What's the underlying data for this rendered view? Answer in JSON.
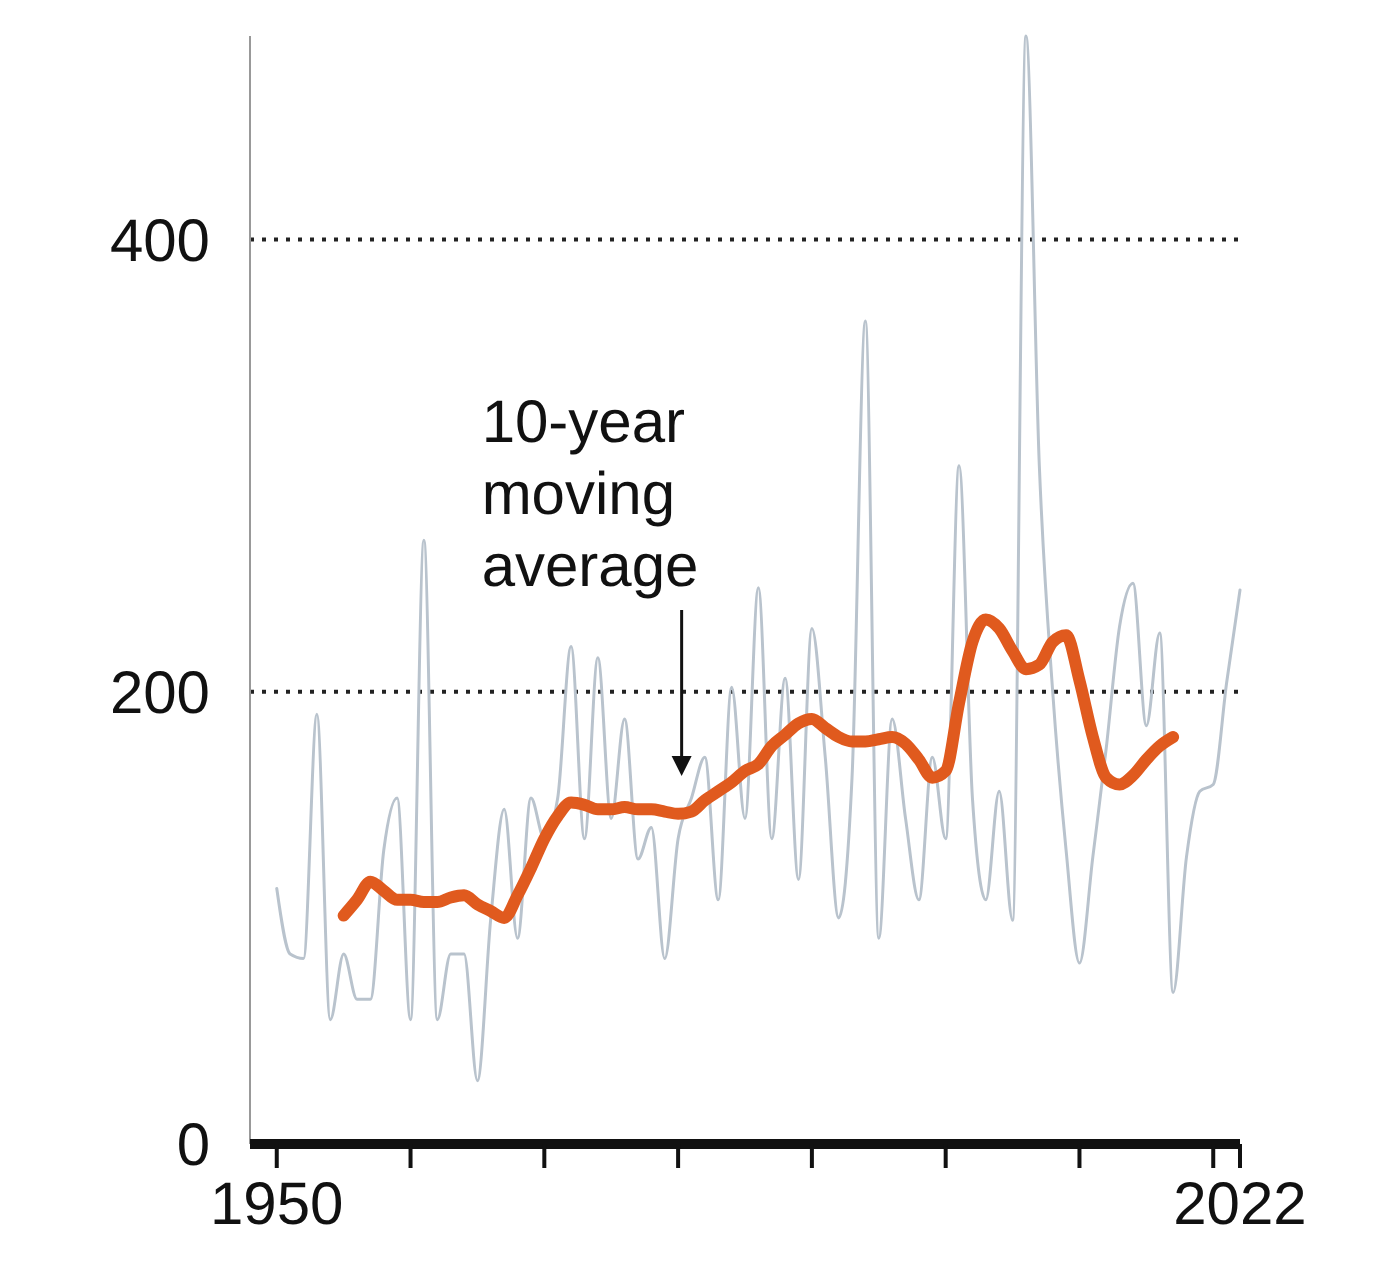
{
  "chart_data": {
    "type": "line",
    "x": [
      1950,
      1951,
      1952,
      1953,
      1954,
      1955,
      1956,
      1957,
      1958,
      1959,
      1960,
      1961,
      1962,
      1963,
      1964,
      1965,
      1966,
      1967,
      1968,
      1969,
      1970,
      1971,
      1972,
      1973,
      1974,
      1975,
      1976,
      1977,
      1978,
      1979,
      1980,
      1981,
      1982,
      1983,
      1984,
      1985,
      1986,
      1987,
      1988,
      1989,
      1990,
      1991,
      1992,
      1993,
      1994,
      1995,
      1996,
      1997,
      1998,
      1999,
      2000,
      2001,
      2002,
      2003,
      2004,
      2005,
      2006,
      2007,
      2008,
      2009,
      2010,
      2011,
      2012,
      2013,
      2014,
      2015,
      2016,
      2017,
      2018,
      2019,
      2020,
      2021,
      2022
    ],
    "series": [
      {
        "color": "#b9c3cd",
        "values": [
          113,
          84,
          82,
          190,
          55,
          84,
          64,
          64,
          130,
          153,
          55,
          267,
          55,
          84,
          84,
          28,
          100,
          148,
          91,
          153,
          135,
          153,
          220,
          135,
          215,
          144,
          188,
          126,
          140,
          82,
          135,
          153,
          171,
          108,
          202,
          144,
          246,
          135,
          206,
          117,
          228,
          171,
          100,
          162,
          364,
          91,
          188,
          144,
          108,
          171,
          135,
          300,
          153,
          108,
          156,
          99,
          490,
          300,
          200,
          130,
          80,
          127,
          175,
          229,
          248,
          185,
          226,
          67,
          127,
          156,
          159,
          204,
          245
        ]
      },
      {
        "color": "#e05a1e",
        "x": [
          1955,
          1956,
          1957,
          1958,
          1959,
          1960,
          1961,
          1962,
          1963,
          1964,
          1965,
          1966,
          1967,
          1968,
          1969,
          1970,
          1971,
          1972,
          1973,
          1974,
          1975,
          1976,
          1977,
          1978,
          1979,
          1980,
          1981,
          1982,
          1983,
          1984,
          1985,
          1986,
          1987,
          1988,
          1989,
          1990,
          1991,
          1992,
          1993,
          1994,
          1995,
          1996,
          1997,
          1998,
          1999,
          2000,
          2001,
          2002,
          2003,
          2004,
          2005,
          2006,
          2007,
          2008,
          2009,
          2010,
          2011,
          2012,
          2013,
          2014,
          2015,
          2016,
          2017
        ],
        "values": [
          101,
          108,
          116,
          112,
          108,
          108,
          107,
          107,
          109,
          110,
          106,
          103,
          100,
          110,
          122,
          135,
          145,
          151,
          150,
          148,
          148,
          149,
          148,
          148,
          147,
          146,
          147,
          152,
          156,
          160,
          165,
          168,
          176,
          181,
          186,
          188,
          184,
          180,
          178,
          178,
          179,
          180,
          177,
          170,
          162,
          165,
          195,
          222,
          232,
          228,
          218,
          210,
          212,
          222,
          225,
          205,
          180,
          162,
          159,
          163,
          170,
          176,
          180
        ]
      }
    ],
    "xlim": [
      1948,
      2022
    ],
    "xticks": [
      1950,
      {
        "value": 1960,
        "label": null
      },
      {
        "value": 1970,
        "label": null
      },
      {
        "value": 1980,
        "label": null
      },
      {
        "value": 1990,
        "label": null
      },
      {
        "value": 2000,
        "label": null
      },
      {
        "value": 2010,
        "label": null
      },
      {
        "value": 2020,
        "label": null
      },
      2022
    ],
    "ylim": [
      0,
      490
    ],
    "yticks": [
      0,
      200,
      400
    ],
    "grid": "y",
    "annotations": [
      "10-year moving average"
    ]
  }
}
